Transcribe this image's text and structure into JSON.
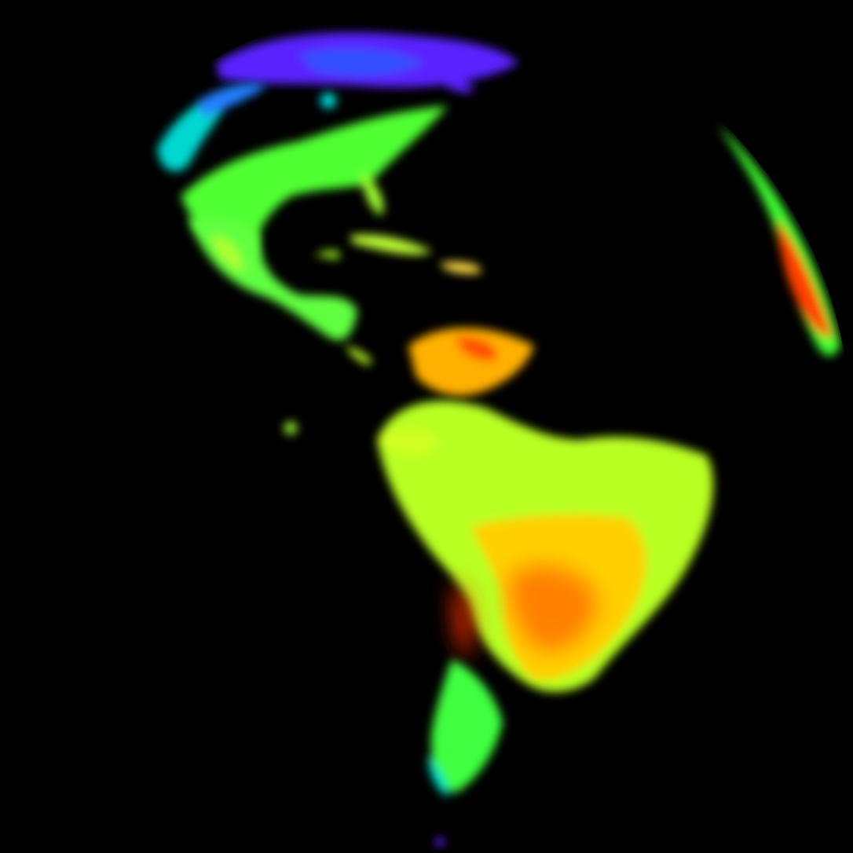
{
  "image": {
    "kind": "satellite full-disk false-color land surface view",
    "background_color": "#000000",
    "colormap": [
      "#5a00ff",
      "#2a40ff",
      "#00e0e0",
      "#30ff30",
      "#a0ff20",
      "#ffff00",
      "#ffa000",
      "#ff2000"
    ],
    "regions": [
      {
        "name": "northern-canada",
        "color": "#5a20ff"
      },
      {
        "name": "pacific-northwest",
        "color": "#00e0c0"
      },
      {
        "name": "united-states",
        "color": "#50ff30"
      },
      {
        "name": "mexico",
        "color": "#60ff40"
      },
      {
        "name": "caribbean",
        "color": "#a0ff20"
      },
      {
        "name": "northern-south-america",
        "color": "#ffb000"
      },
      {
        "name": "amazon-brazil",
        "color": "#ffd000"
      },
      {
        "name": "central-south-america",
        "color": "#ff8000"
      },
      {
        "name": "patagonia",
        "color": "#40ff40"
      },
      {
        "name": "west-africa-limb",
        "color": "#ff4000"
      }
    ]
  }
}
